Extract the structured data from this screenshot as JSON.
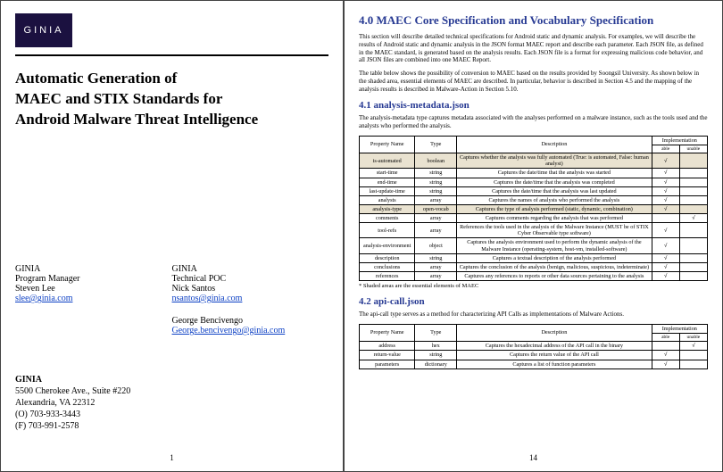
{
  "logo": {
    "text": "GINIA",
    "bg": "#1b1140",
    "fg": "#ffffff"
  },
  "title": {
    "line1": "Automatic Generation of",
    "line2": "MAEC and STIX Standards for",
    "line3": "Android Malware Threat Intelligence"
  },
  "contacts": {
    "left": {
      "org": "GINIA",
      "role": "Program Manager",
      "name": "Steven Lee",
      "email": "slee@ginia.com"
    },
    "right": {
      "org": "GINIA",
      "role": "Technical POC",
      "name1": "Nick Santos",
      "email1": "nsantos@ginia.com",
      "name2": "George Bencivengo",
      "email2": "George.bencivengo@ginia.com"
    }
  },
  "address": {
    "org": "GINIA",
    "street": "5500 Cherokee Ave., Suite #220",
    "citystate": "Alexandria, VA 22312",
    "phone_o": "(O) 703-933-3443",
    "phone_f": "(F) 703-991-2578"
  },
  "left_pagenum": "1",
  "right_pagenum": "14",
  "section40": {
    "heading": "4.0 MAEC Core Specification and Vocabulary Specification",
    "para1": "This section will describe detailed technical specifications for Android static and dynamic analysis. For examples, we will describe the results of Android static and dynamic analysis in the JSON format MAEC report and describe each parameter. Each JSON file, as defined in the MAEC standard, is generated based on the analysis results. Each JSON file is a format for expressing malicious code behavior, and all JSON files are combined into one MAEC Report.",
    "para2": "The table below shows the possibility of conversion to MAEC based on the results provided by Soongsil University. As shown below in the shaded area, essential elements of MAEC are described. In particular, behavior is described in Section 4.5 and the mapping of the analysis results is described in Malware-Action in Section 5.10."
  },
  "section41": {
    "heading": "4.1 analysis-metadata.json",
    "para": "The analysis-metadata type captures metadata associated with the analyses performed on a malware instance, such as the tools used and the analysts who performed the analysis."
  },
  "table41": {
    "headers": {
      "name": "Property Name",
      "type": "Type",
      "desc": "Description",
      "impl_group": "Implementation",
      "impl_able": "able",
      "impl_unable": "unable"
    },
    "rows": [
      {
        "essential": true,
        "name": "is-automated",
        "type": "boolean",
        "desc": "Captures whether the analysis was fully automated (True: is automated, False: human analyst)",
        "able": "√",
        "unable": ""
      },
      {
        "essential": false,
        "name": "start-time",
        "type": "string",
        "desc": "Captures the date/time that the analysis was started",
        "able": "√",
        "unable": ""
      },
      {
        "essential": false,
        "name": "end-time",
        "type": "string",
        "desc": "Captures the date/time that the analysis was completed",
        "able": "√",
        "unable": ""
      },
      {
        "essential": false,
        "name": "last-update-time",
        "type": "string",
        "desc": "Captures the date/time that the analysis was last updated",
        "able": "√",
        "unable": ""
      },
      {
        "essential": false,
        "name": "analysts",
        "type": "array",
        "desc": "Captures the names of analysts who performed the analysis",
        "able": "√",
        "unable": ""
      },
      {
        "essential": true,
        "name": "analysis-type",
        "type": "open-vocab",
        "desc": "Captures the type of analysis performed (static, dynamic, combination)",
        "able": "√",
        "unable": ""
      },
      {
        "essential": false,
        "name": "comments",
        "type": "array",
        "desc": "Captures comments regarding the analysis that was performed",
        "able": "",
        "unable": "√"
      },
      {
        "essential": false,
        "name": "tool-refs",
        "type": "array",
        "desc": "References the tools used in the analysis of the Malware Instance (MUST be of STIX Cyber Observable type software)",
        "able": "√",
        "unable": ""
      },
      {
        "essential": false,
        "name": "analysis-environment",
        "type": "object",
        "desc": "Captures the analysis environment used to perform the dynamic analysis of the Malware Instance (operating-system, host-vm, installed-software)",
        "able": "√",
        "unable": ""
      },
      {
        "essential": false,
        "name": "description",
        "type": "string",
        "desc": "Captures a textual description of the analysis performed",
        "able": "√",
        "unable": ""
      },
      {
        "essential": false,
        "name": "conclusions",
        "type": "array",
        "desc": "Captures the conclusion of the analysis (benign, malicious, suspicious, indeterminate)",
        "able": "√",
        "unable": ""
      },
      {
        "essential": false,
        "name": "references",
        "type": "array",
        "desc": "Captures any references to reports or other data sources pertaining to the analysis",
        "able": "√",
        "unable": ""
      }
    ],
    "footnote": "* Shaded areas are the essential elements of MAEC"
  },
  "section42": {
    "heading": "4.2 api-call.json",
    "para": "The api-call type serves as a method for characterizing API Calls as implementations of Malware Actions."
  },
  "table42": {
    "rows": [
      {
        "essential": false,
        "name": "address",
        "type": "hex",
        "desc": "Captures the hexadecimal address of the API call in the binary",
        "able": "",
        "unable": "√"
      },
      {
        "essential": false,
        "name": "return-value",
        "type": "string",
        "desc": "Captures the return value of the API call",
        "able": "√",
        "unable": ""
      },
      {
        "essential": false,
        "name": "parameters",
        "type": "dictionary",
        "desc": "Captures a list of function parameters",
        "able": "√",
        "unable": ""
      }
    ]
  },
  "colors": {
    "heading": "#273a93",
    "link": "#0b3fc4",
    "shade": "#e9e2d0",
    "border": "#000000"
  }
}
